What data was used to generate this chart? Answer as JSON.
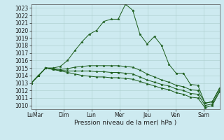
{
  "title": "",
  "xlabel": "Pression niveau de la mer( hPa )",
  "background_color": "#cdeaf0",
  "grid_color": "#aacccc",
  "line_color": "#1a5c1a",
  "ylim": [
    1009.5,
    1023.5
  ],
  "xlim": [
    0,
    47
  ],
  "x_ticks": [
    1,
    8,
    15,
    22,
    29,
    36,
    43
  ],
  "x_tick_labels": [
    "LuMar",
    "Dim",
    "Lun",
    "Mer",
    "Jeu",
    "Ven",
    "Sam"
  ],
  "yticks": [
    1010,
    1011,
    1012,
    1013,
    1014,
    1015,
    1016,
    1017,
    1018,
    1019,
    1020,
    1021,
    1022,
    1023
  ],
  "series": [
    [
      1013.0,
      1014.0,
      1015.0,
      1015.0,
      1015.2,
      1016.0,
      1017.3,
      1018.5,
      1019.5,
      1020.0,
      1021.2,
      1021.5,
      1021.5,
      1023.5,
      1022.7,
      1019.5,
      1018.2,
      1019.2,
      1018.0,
      1015.5,
      1014.3,
      1014.3,
      1012.8,
      1012.7,
      1010.3,
      1010.5,
      1012.3
    ],
    [
      1013.0,
      1014.0,
      1015.0,
      1014.9,
      1014.8,
      1014.9,
      1015.1,
      1015.2,
      1015.3,
      1015.3,
      1015.3,
      1015.3,
      1015.3,
      1015.2,
      1015.1,
      1014.7,
      1014.2,
      1013.8,
      1013.4,
      1013.1,
      1012.7,
      1012.5,
      1012.1,
      1012.0,
      1010.3,
      1010.5,
      1012.3
    ],
    [
      1013.0,
      1014.0,
      1015.0,
      1014.8,
      1014.7,
      1014.6,
      1014.6,
      1014.6,
      1014.6,
      1014.5,
      1014.5,
      1014.4,
      1014.4,
      1014.3,
      1014.2,
      1013.8,
      1013.4,
      1013.1,
      1012.8,
      1012.6,
      1012.2,
      1012.0,
      1011.6,
      1011.5,
      1010.0,
      1010.2,
      1012.0
    ],
    [
      1013.0,
      1014.0,
      1015.0,
      1014.8,
      1014.6,
      1014.4,
      1014.2,
      1014.0,
      1013.9,
      1013.8,
      1013.8,
      1013.7,
      1013.7,
      1013.6,
      1013.5,
      1013.2,
      1012.9,
      1012.6,
      1012.3,
      1012.1,
      1011.7,
      1011.5,
      1011.1,
      1011.0,
      1009.7,
      1010.0,
      1011.8
    ]
  ]
}
